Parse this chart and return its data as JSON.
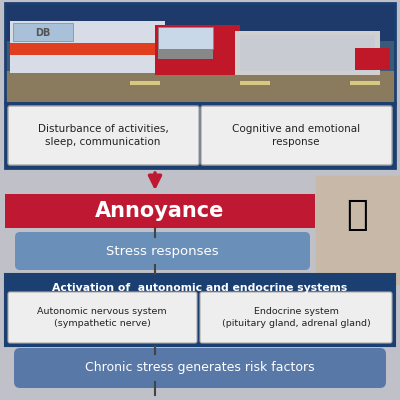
{
  "bg_color": "#c0c0c8",
  "annoyance_color": "#be1832",
  "annoyance_text": "Annoyance",
  "annoyance_text_color": "#ffffff",
  "stress_color": "#6a8fb8",
  "stress_text": "Stress responses",
  "stress_text_color": "#ffffff",
  "dark_blue": "#1c3f72",
  "dark_blue_text": "#ffffff",
  "activation_text": "Activation of  autonomic and endocrine systems",
  "chronic_color": "#5878a8",
  "chronic_text": "Chronic stress generates risk factors",
  "chronic_text_color": "#ffffff",
  "box1_text": "Disturbance of activities,\nsleep, communication",
  "box2_text": "Cognitive and emotional\nresponse",
  "sub_box1_text": "Autonomic nervous system\n(sympathetic nerve)",
  "sub_box2_text": "Endocrine system\n(pituitary gland, adrenal gland)",
  "box_bg": "#eeeeee",
  "box_text_color": "#222222",
  "arrow_color": "#be1832",
  "connector_color": "#444444",
  "border_color": "#1c3f72",
  "img_bg": "#3a5a7a",
  "img_sky": "#1e3a6a",
  "img_road": "#8a7a5e",
  "img_train_body": "#d8dce6",
  "img_train_stripe": "#e04020",
  "img_truck_body": "#c01828",
  "img_truck_cab": "#b01020"
}
